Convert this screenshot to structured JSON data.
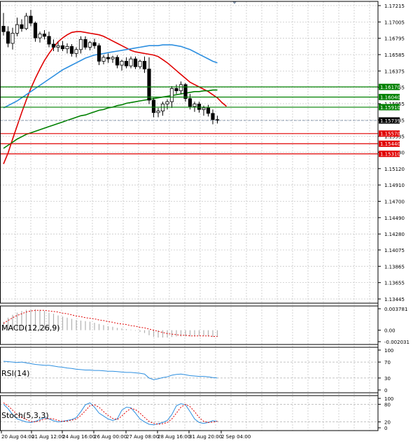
{
  "chart_data": [
    {
      "type": "candlestick",
      "name": "price",
      "y_axis": {
        "ticks": [
          "1.17215",
          "1.17005",
          "1.16795",
          "1.16585",
          "1.16375",
          "1.16165",
          "1.15955",
          "1.15745",
          "1.15535",
          "1.15330",
          "1.15120",
          "1.14910",
          "1.14700",
          "1.14490",
          "1.14280",
          "1.14075",
          "1.13865",
          "1.13655",
          "1.13445"
        ],
        "range": [
          1.13445,
          1.17215
        ]
      },
      "x_axis": {
        "ticks": [
          "20 Aug 04:00",
          "21 Aug 12:00",
          "24 Aug 16:00",
          "26 Aug 00:00",
          "27 Aug 08:00",
          "28 Aug 16:00",
          "31 Aug 20:00",
          "2 Sep 04:00"
        ]
      },
      "levels": [
        {
          "label": "1.16170",
          "value": 1.1617,
          "color": "#008000"
        },
        {
          "label": "1.16040",
          "value": 1.1604,
          "color": "#008000"
        },
        {
          "label": "1.15910",
          "value": 1.1591,
          "color": "#008000"
        },
        {
          "label": "1.15570",
          "value": 1.1557,
          "color": "#e00000"
        },
        {
          "label": "1.15440",
          "value": 1.1544,
          "color": "#e00000"
        },
        {
          "label": "1.15310",
          "value": 1.1531,
          "color": "#e00000"
        }
      ],
      "current_price": {
        "label": "1.15739",
        "value": 1.15739
      },
      "candles": [
        {
          "o": 1.1695,
          "h": 1.1712,
          "l": 1.1683,
          "c": 1.1688
        },
        {
          "o": 1.1688,
          "h": 1.1695,
          "l": 1.1668,
          "c": 1.1673
        },
        {
          "o": 1.1673,
          "h": 1.1693,
          "l": 1.1665,
          "c": 1.1686
        },
        {
          "o": 1.1686,
          "h": 1.1706,
          "l": 1.1682,
          "c": 1.1697
        },
        {
          "o": 1.1697,
          "h": 1.1704,
          "l": 1.1688,
          "c": 1.1692
        },
        {
          "o": 1.1692,
          "h": 1.1712,
          "l": 1.169,
          "c": 1.1708
        },
        {
          "o": 1.1708,
          "h": 1.1716,
          "l": 1.1695,
          "c": 1.1699
        },
        {
          "o": 1.1699,
          "h": 1.1701,
          "l": 1.1675,
          "c": 1.168
        },
        {
          "o": 1.168,
          "h": 1.1688,
          "l": 1.1674,
          "c": 1.1685
        },
        {
          "o": 1.1685,
          "h": 1.169,
          "l": 1.1678,
          "c": 1.1682
        },
        {
          "o": 1.1682,
          "h": 1.1688,
          "l": 1.1668,
          "c": 1.1672
        },
        {
          "o": 1.1672,
          "h": 1.1678,
          "l": 1.1663,
          "c": 1.1668
        },
        {
          "o": 1.1668,
          "h": 1.1675,
          "l": 1.1662,
          "c": 1.167
        },
        {
          "o": 1.167,
          "h": 1.1676,
          "l": 1.1663,
          "c": 1.1666
        },
        {
          "o": 1.1666,
          "h": 1.1673,
          "l": 1.166,
          "c": 1.1669
        },
        {
          "o": 1.1669,
          "h": 1.1672,
          "l": 1.1656,
          "c": 1.166
        },
        {
          "o": 1.166,
          "h": 1.1668,
          "l": 1.1655,
          "c": 1.1665
        },
        {
          "o": 1.1665,
          "h": 1.1682,
          "l": 1.166,
          "c": 1.1678
        },
        {
          "o": 1.1678,
          "h": 1.1682,
          "l": 1.1665,
          "c": 1.1668
        },
        {
          "o": 1.1668,
          "h": 1.1676,
          "l": 1.1664,
          "c": 1.1674
        },
        {
          "o": 1.1674,
          "h": 1.1679,
          "l": 1.1666,
          "c": 1.167
        },
        {
          "o": 1.167,
          "h": 1.1673,
          "l": 1.1645,
          "c": 1.165
        },
        {
          "o": 1.165,
          "h": 1.1658,
          "l": 1.1646,
          "c": 1.1655
        },
        {
          "o": 1.1655,
          "h": 1.166,
          "l": 1.1648,
          "c": 1.1653
        },
        {
          "o": 1.1653,
          "h": 1.1657,
          "l": 1.1648,
          "c": 1.1655
        },
        {
          "o": 1.1655,
          "h": 1.1658,
          "l": 1.1641,
          "c": 1.1645
        },
        {
          "o": 1.1645,
          "h": 1.1652,
          "l": 1.1638,
          "c": 1.165
        },
        {
          "o": 1.165,
          "h": 1.1655,
          "l": 1.1641,
          "c": 1.1644
        },
        {
          "o": 1.1644,
          "h": 1.1656,
          "l": 1.1641,
          "c": 1.1653
        },
        {
          "o": 1.1653,
          "h": 1.1656,
          "l": 1.164,
          "c": 1.1643
        },
        {
          "o": 1.1643,
          "h": 1.1652,
          "l": 1.164,
          "c": 1.165
        },
        {
          "o": 1.165,
          "h": 1.1656,
          "l": 1.1635,
          "c": 1.164
        },
        {
          "o": 1.164,
          "h": 1.1655,
          "l": 1.1595,
          "c": 1.16
        },
        {
          "o": 1.16,
          "h": 1.1603,
          "l": 1.1578,
          "c": 1.1584
        },
        {
          "o": 1.1584,
          "h": 1.159,
          "l": 1.1578,
          "c": 1.1586
        },
        {
          "o": 1.1586,
          "h": 1.1598,
          "l": 1.158,
          "c": 1.1595
        },
        {
          "o": 1.1595,
          "h": 1.1601,
          "l": 1.1588,
          "c": 1.1598
        },
        {
          "o": 1.1598,
          "h": 1.1618,
          "l": 1.159,
          "c": 1.1615
        },
        {
          "o": 1.1615,
          "h": 1.162,
          "l": 1.1608,
          "c": 1.1612
        },
        {
          "o": 1.1612,
          "h": 1.1624,
          "l": 1.1608,
          "c": 1.162
        },
        {
          "o": 1.162,
          "h": 1.1622,
          "l": 1.1598,
          "c": 1.1602
        },
        {
          "o": 1.1602,
          "h": 1.1608,
          "l": 1.1588,
          "c": 1.1592
        },
        {
          "o": 1.1592,
          "h": 1.1598,
          "l": 1.1585,
          "c": 1.1595
        },
        {
          "o": 1.1595,
          "h": 1.1598,
          "l": 1.1584,
          "c": 1.1588
        },
        {
          "o": 1.1588,
          "h": 1.1593,
          "l": 1.158,
          "c": 1.159
        },
        {
          "o": 1.159,
          "h": 1.1594,
          "l": 1.1579,
          "c": 1.1583
        },
        {
          "o": 1.1583,
          "h": 1.1588,
          "l": 1.1569,
          "c": 1.1575
        },
        {
          "o": 1.1575,
          "h": 1.158,
          "l": 1.157,
          "c": 1.1574
        }
      ],
      "overlays": [
        {
          "color": "#e00000",
          "values": [
            1.1518,
            1.1532,
            1.155,
            1.1567,
            1.1584,
            1.16,
            1.1615,
            1.1628,
            1.164,
            1.1651,
            1.166,
            1.1668,
            1.1675,
            1.168,
            1.1684,
            1.1687,
            1.1688,
            1.1688,
            1.1687,
            1.1686,
            1.1685,
            1.1684,
            1.1682,
            1.1679,
            1.1676,
            1.1673,
            1.167,
            1.1667,
            1.1664,
            1.1662,
            1.1661,
            1.166,
            1.1659,
            1.1658,
            1.1656,
            1.1652,
            1.1648,
            1.1643,
            1.1638,
            1.1633,
            1.1628,
            1.1623,
            1.162,
            1.1617,
            1.1614,
            1.1611,
            1.1607,
            1.1603,
            1.1597,
            1.1592
          ]
        },
        {
          "color": "#2d8fe0",
          "values": [
            1.159,
            1.1593,
            1.1596,
            1.1599,
            1.1603,
            1.1607,
            1.1611,
            1.1615,
            1.1619,
            1.1623,
            1.1627,
            1.1631,
            1.1635,
            1.1639,
            1.1642,
            1.1645,
            1.1648,
            1.1651,
            1.1654,
            1.1656,
            1.1658,
            1.1659,
            1.166,
            1.1661,
            1.1662,
            1.1663,
            1.1664,
            1.1665,
            1.1666,
            1.1667,
            1.1668,
            1.1669,
            1.167,
            1.167,
            1.167,
            1.1671,
            1.1671,
            1.1671,
            1.167,
            1.1669,
            1.1667,
            1.1665,
            1.1662,
            1.1659,
            1.1656,
            1.1653,
            1.165,
            1.1648
          ]
        },
        {
          "color": "#008000",
          "values": [
            1.1538,
            1.1542,
            1.1546,
            1.155,
            1.1553,
            1.1556,
            1.1558,
            1.156,
            1.1562,
            1.1564,
            1.1566,
            1.1568,
            1.157,
            1.1572,
            1.1574,
            1.1576,
            1.1578,
            1.158,
            1.1581,
            1.1583,
            1.1585,
            1.1587,
            1.1588,
            1.159,
            1.1591,
            1.1593,
            1.1594,
            1.1596,
            1.1597,
            1.1598,
            1.1599,
            1.16,
            1.1601,
            1.1602,
            1.1603,
            1.1604,
            1.1605,
            1.1606,
            1.1607,
            1.1608,
            1.1609,
            1.161,
            1.1611,
            1.1611,
            1.1612,
            1.1612,
            1.1613,
            1.1613
          ]
        }
      ]
    },
    {
      "type": "histogram",
      "name": "macd",
      "label": "MACD(12,26,9)",
      "y_axis": {
        "ticks": [
          "0.003781",
          "0.00",
          "-0.002031"
        ],
        "range": [
          -0.002031,
          0.003781
        ]
      },
      "histogram": [
        0.0015,
        0.0022,
        0.0027,
        0.0031,
        0.0034,
        0.0036,
        0.0037,
        0.0037,
        0.0036,
        0.0034,
        0.0031,
        0.0029,
        0.0026,
        0.0024,
        0.0022,
        0.002,
        0.0018,
        0.0017,
        0.0016,
        0.0015,
        0.0013,
        0.0011,
        0.0009,
        0.0007,
        0.0006,
        0.0004,
        0.0003,
        0.0002,
        0.0001,
        -0.0001,
        -0.0003,
        -0.0005,
        -0.0009,
        -0.0012,
        -0.0013,
        -0.0013,
        -0.0013,
        -0.0012,
        -0.0011,
        -0.0011,
        -0.0011,
        -0.0011,
        -0.0011,
        -0.001,
        -0.001,
        -0.0011,
        -0.0012,
        -0.0012
      ],
      "signal": [
        0.0012,
        0.0017,
        0.0022,
        0.0026,
        0.0029,
        0.0032,
        0.0034,
        0.0035,
        0.0035,
        0.0035,
        0.0034,
        0.0033,
        0.0032,
        0.003,
        0.0029,
        0.0027,
        0.0025,
        0.0024,
        0.0022,
        0.0021,
        0.002,
        0.0018,
        0.0017,
        0.0015,
        0.0014,
        0.0012,
        0.0011,
        0.001,
        0.0008,
        0.0007,
        0.0005,
        0.0004,
        0.0002,
        0.0,
        -0.0002,
        -0.0004,
        -0.0006,
        -0.0007,
        -0.0008,
        -0.0009,
        -0.0009,
        -0.001,
        -0.001,
        -0.001,
        -0.001,
        -0.001,
        -0.0011,
        -0.0011
      ]
    },
    {
      "type": "line",
      "name": "rsi",
      "label": "RSI(14)",
      "y_axis": {
        "ticks": [
          "100",
          "70",
          "30",
          "0"
        ],
        "range": [
          0,
          100
        ]
      },
      "levels": [
        70,
        30
      ],
      "values": [
        72,
        71,
        70,
        69,
        70,
        68,
        66,
        64,
        63,
        62,
        62,
        60,
        58,
        57,
        55,
        54,
        52,
        51,
        50,
        50,
        49,
        49,
        48,
        47,
        47,
        46,
        45,
        44,
        44,
        43,
        42,
        40,
        30,
        26,
        28,
        31,
        33,
        37,
        39,
        40,
        38,
        36,
        35,
        34,
        34,
        33,
        31,
        30
      ]
    },
    {
      "type": "line",
      "name": "stochastic",
      "label": "Stoch(5,3,3)",
      "y_axis": {
        "ticks": [
          "100",
          "80",
          "20",
          "0"
        ],
        "range": [
          0,
          100
        ]
      },
      "levels": [
        80,
        20
      ],
      "k": [
        80,
        65,
        45,
        30,
        25,
        20,
        18,
        22,
        28,
        35,
        30,
        24,
        20,
        22,
        25,
        28,
        35,
        55,
        78,
        85,
        70,
        50,
        40,
        30,
        25,
        30,
        60,
        70,
        68,
        50,
        30,
        20,
        12,
        10,
        14,
        18,
        25,
        45,
        75,
        82,
        78,
        55,
        30,
        18,
        15,
        18,
        24,
        22
      ],
      "d": [
        85,
        75,
        60,
        45,
        35,
        28,
        22,
        20,
        24,
        30,
        32,
        30,
        25,
        22,
        23,
        26,
        30,
        42,
        58,
        75,
        78,
        70,
        55,
        42,
        32,
        28,
        40,
        55,
        66,
        62,
        50,
        35,
        22,
        15,
        12,
        14,
        18,
        30,
        50,
        70,
        80,
        72,
        55,
        35,
        22,
        18,
        19,
        22
      ]
    }
  ]
}
